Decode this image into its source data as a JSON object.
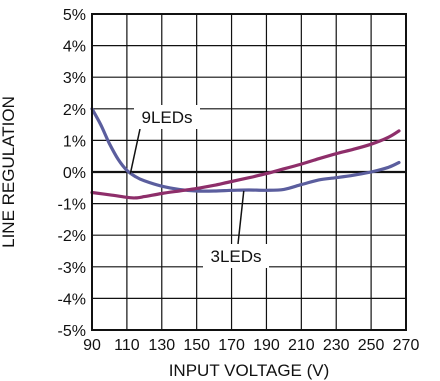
{
  "chart_data": {
    "type": "line",
    "title": "",
    "xlabel": "INPUT VOLTAGE (V)",
    "ylabel": "LINE REGULATION",
    "xlim": [
      90,
      270
    ],
    "ylim": [
      -5,
      5
    ],
    "grid": true,
    "x_ticks": [
      90,
      110,
      130,
      150,
      170,
      190,
      210,
      230,
      250,
      270
    ],
    "x_tick_labels": [
      "90",
      "110",
      "130",
      "150",
      "170",
      "190",
      "210",
      "230",
      "250",
      "270"
    ],
    "y_ticks": [
      5,
      4,
      3,
      2,
      1,
      0,
      -1,
      -2,
      -3,
      -4,
      -5
    ],
    "y_tick_labels": [
      "5%",
      "4%",
      "3%",
      "2%",
      "1%",
      "0%",
      "-1%",
      "-2%",
      "-3%",
      "-4%",
      "-5%"
    ],
    "series": [
      {
        "name": "9LEDs",
        "color": "#5b5e9e",
        "x": [
          90,
          95,
          100,
          105,
          110,
          115,
          120,
          130,
          140,
          150,
          160,
          170,
          180,
          190,
          200,
          210,
          220,
          230,
          240,
          250,
          260,
          266
        ],
        "y": [
          2.0,
          1.5,
          0.9,
          0.4,
          0.05,
          -0.15,
          -0.28,
          -0.45,
          -0.55,
          -0.6,
          -0.6,
          -0.58,
          -0.57,
          -0.58,
          -0.55,
          -0.4,
          -0.25,
          -0.18,
          -0.1,
          0.0,
          0.15,
          0.3
        ]
      },
      {
        "name": "3LEDs",
        "color": "#8e2e6a",
        "x": [
          90,
          100,
          110,
          115,
          120,
          130,
          140,
          150,
          160,
          170,
          180,
          190,
          200,
          210,
          220,
          230,
          240,
          250,
          260,
          266
        ],
        "y": [
          -0.65,
          -0.72,
          -0.8,
          -0.82,
          -0.78,
          -0.68,
          -0.6,
          -0.52,
          -0.42,
          -0.3,
          -0.18,
          -0.05,
          0.1,
          0.25,
          0.42,
          0.58,
          0.72,
          0.88,
          1.1,
          1.3
        ]
      }
    ],
    "annotations": [
      {
        "text": "9LEDs",
        "series": "9LEDs",
        "x": 112,
        "y": -0.05
      },
      {
        "text": "3LEDs",
        "series": "3LEDs",
        "x": 177,
        "y": -0.6
      }
    ]
  }
}
